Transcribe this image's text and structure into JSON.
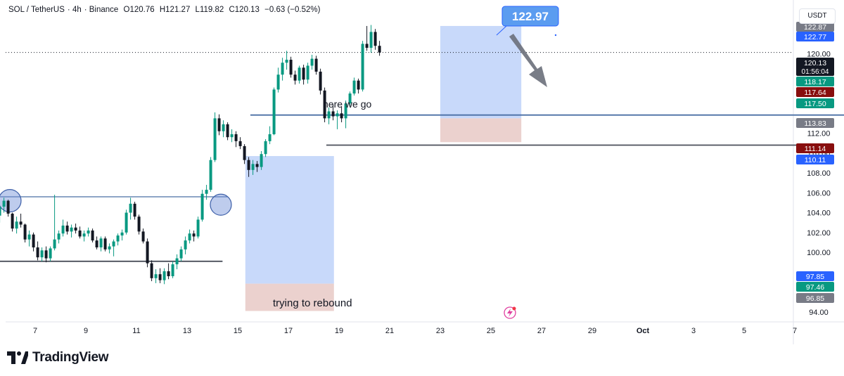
{
  "header": {
    "symbol": "SOL / TetherUS",
    "interval": "4h",
    "exchange": "Binance",
    "open": "O120.76",
    "high": "H121.27",
    "low": "L119.82",
    "close": "C120.13",
    "change": "−0.63 (−0.52%)"
  },
  "axis": {
    "currency": "USDT",
    "countdown": "01:56:04"
  },
  "brand": {
    "name": "TradingView"
  },
  "annotations": {
    "here_we_go": "here we go",
    "rebound": "trying to rebound",
    "callout": "122.97"
  },
  "colors": {
    "up": "#089981",
    "down": "#131722",
    "long_zone": "#9bb9f5",
    "stop_zone": "#e8c9c6",
    "blue_line": "#4a6fa5",
    "gray_line": "#787b86",
    "callout": "#2962ff"
  },
  "chart_data": {
    "type": "candlestick",
    "y_range": [
      93,
      124
    ],
    "y_ticks": [
      "94.00",
      "100.00",
      "102.00",
      "104.00",
      "106.00",
      "108.00",
      "110.00",
      "112.00",
      "120.00",
      "122.00"
    ],
    "x_ticks": [
      "7",
      "9",
      "11",
      "13",
      "15",
      "17",
      "19",
      "21",
      "23",
      "25",
      "27",
      "29",
      "Oct",
      "3",
      "5",
      "7"
    ],
    "price_labels": [
      {
        "value": "122.87",
        "color": "#787b86"
      },
      {
        "value": "122.77",
        "color": "#2962ff"
      },
      {
        "value": "120.13",
        "color": "#131722"
      },
      {
        "value": "118.17",
        "color": "#089981"
      },
      {
        "value": "117.64",
        "color": "#880e0e"
      },
      {
        "value": "117.50",
        "color": "#089981"
      },
      {
        "value": "113.83",
        "color": "#787b86"
      },
      {
        "value": "111.14",
        "color": "#880e0e"
      },
      {
        "value": "110.11",
        "color": "#2962ff"
      },
      {
        "value": "97.85",
        "color": "#2962ff"
      },
      {
        "value": "97.46",
        "color": "#089981"
      },
      {
        "value": "96.85",
        "color": "#787b86"
      }
    ],
    "current_price": 120.13,
    "horizontal_levels": [
      {
        "price": 113.83,
        "from_day": 15.5,
        "to_day": 44
      },
      {
        "price": 110.8,
        "from_day": 18.5,
        "to_day": 37.5
      },
      {
        "price": 105.6,
        "from_day": 4,
        "to_day": 14.6
      },
      {
        "price": 99.1,
        "from_day": 4,
        "to_day": 14.4
      }
    ],
    "position_tools": [
      {
        "from_day": 15.3,
        "to_day": 18.8,
        "entry": 96.85,
        "target": 109.7,
        "stop": 94.1
      },
      {
        "from_day": 23.0,
        "to_day": 26.2,
        "entry": 113.5,
        "target": 122.8,
        "stop": 111.1
      }
    ],
    "candles": [
      [
        106.1,
        106.4,
        104.0,
        105.2
      ],
      [
        105.2,
        106.9,
        104.6,
        106.2
      ],
      [
        106.2,
        106.5,
        104.3,
        104.7
      ],
      [
        104.7,
        105.3,
        103.2,
        103.9
      ],
      [
        103.9,
        104.2,
        102.8,
        103.6
      ],
      [
        103.6,
        105.1,
        103.2,
        104.8
      ],
      [
        104.8,
        105.0,
        103.0,
        103.3
      ],
      [
        103.3,
        104.1,
        102.8,
        103.9
      ],
      [
        103.9,
        104.0,
        102.6,
        102.9
      ],
      [
        102.9,
        103.8,
        102.6,
        103.4
      ],
      [
        103.4,
        104.7,
        103.1,
        104.3
      ],
      [
        104.3,
        104.9,
        103.4,
        103.7
      ],
      [
        103.7,
        104.7,
        103.0,
        104.6
      ],
      [
        104.6,
        105.5,
        104.0,
        105.2
      ],
      [
        105.2,
        105.3,
        103.6,
        103.9
      ],
      [
        103.9,
        104.0,
        102.1,
        102.4
      ],
      [
        102.4,
        103.6,
        101.9,
        103.1
      ],
      [
        103.1,
        103.9,
        102.5,
        102.8
      ],
      [
        102.8,
        102.9,
        101.0,
        101.3
      ],
      [
        101.3,
        102.2,
        100.6,
        101.8
      ],
      [
        101.8,
        102.0,
        100.1,
        100.5
      ],
      [
        100.5,
        101.1,
        99.2,
        99.5
      ],
      [
        99.5,
        100.5,
        99.1,
        100.2
      ],
      [
        100.2,
        100.6,
        99.0,
        99.4
      ],
      [
        99.4,
        100.6,
        99.1,
        100.4
      ],
      [
        100.4,
        105.8,
        100.2,
        101.3
      ],
      [
        101.3,
        102.2,
        100.9,
        101.9
      ],
      [
        101.9,
        103.3,
        101.6,
        102.7
      ],
      [
        102.7,
        103.1,
        101.8,
        102.1
      ],
      [
        102.1,
        102.8,
        101.5,
        102.5
      ],
      [
        102.5,
        102.9,
        101.9,
        102.2
      ],
      [
        102.2,
        102.6,
        101.4,
        101.6
      ],
      [
        101.6,
        102.2,
        101.1,
        101.9
      ],
      [
        101.9,
        102.5,
        101.6,
        102.2
      ],
      [
        102.2,
        102.4,
        101.0,
        101.2
      ],
      [
        101.2,
        101.6,
        100.3,
        100.5
      ],
      [
        100.5,
        101.6,
        100.1,
        101.4
      ],
      [
        101.4,
        101.6,
        100.1,
        100.3
      ],
      [
        100.3,
        100.9,
        99.9,
        100.6
      ],
      [
        100.6,
        101.3,
        99.6,
        101.1
      ],
      [
        101.1,
        101.9,
        100.7,
        101.7
      ],
      [
        101.7,
        102.3,
        101.2,
        102.0
      ],
      [
        102.0,
        104.3,
        101.8,
        104.0
      ],
      [
        104.0,
        105.5,
        103.3,
        104.9
      ],
      [
        104.9,
        105.1,
        103.3,
        103.6
      ],
      [
        103.6,
        103.8,
        101.8,
        102.1
      ],
      [
        102.1,
        102.4,
        100.9,
        101.1
      ],
      [
        101.1,
        101.4,
        98.5,
        98.9
      ],
      [
        98.9,
        99.2,
        97.1,
        97.4
      ],
      [
        97.4,
        98.3,
        96.9,
        97.8
      ],
      [
        97.8,
        98.4,
        96.9,
        97.2
      ],
      [
        97.2,
        98.4,
        96.8,
        98.1
      ],
      [
        98.1,
        98.9,
        97.3,
        97.6
      ],
      [
        97.6,
        99.1,
        97.4,
        98.8
      ],
      [
        98.8,
        99.8,
        98.3,
        99.4
      ],
      [
        99.4,
        100.6,
        99.1,
        100.3
      ],
      [
        100.3,
        101.6,
        99.8,
        101.2
      ],
      [
        101.2,
        102.3,
        100.9,
        101.9
      ],
      [
        101.9,
        102.2,
        101.1,
        101.6
      ],
      [
        101.6,
        103.6,
        101.4,
        103.3
      ],
      [
        103.3,
        106.3,
        103.1,
        105.9
      ],
      [
        105.9,
        106.8,
        105.3,
        106.3
      ],
      [
        106.3,
        109.6,
        106.1,
        109.3
      ],
      [
        109.3,
        114.1,
        109.1,
        113.5
      ],
      [
        113.5,
        113.9,
        111.8,
        112.2
      ],
      [
        112.2,
        113.3,
        111.6,
        112.9
      ],
      [
        112.9,
        113.1,
        111.3,
        111.6
      ],
      [
        111.6,
        112.4,
        111.1,
        111.9
      ],
      [
        111.9,
        112.2,
        110.6,
        111.2
      ],
      [
        111.2,
        111.6,
        110.4,
        110.7
      ],
      [
        110.7,
        110.9,
        108.9,
        109.3
      ],
      [
        109.3,
        109.6,
        107.6,
        108.3
      ],
      [
        108.3,
        109.3,
        107.8,
        108.9
      ],
      [
        108.9,
        109.2,
        108.1,
        108.6
      ],
      [
        108.6,
        110.2,
        108.3,
        109.9
      ],
      [
        109.9,
        111.4,
        109.6,
        111.2
      ],
      [
        111.2,
        112.7,
        110.9,
        111.9
      ],
      [
        111.9,
        116.6,
        111.8,
        116.4
      ],
      [
        116.4,
        118.6,
        116.1,
        117.9
      ],
      [
        117.9,
        119.6,
        117.3,
        119.1
      ],
      [
        119.1,
        120.3,
        118.4,
        119.4
      ],
      [
        119.4,
        119.7,
        117.6,
        117.9
      ],
      [
        117.9,
        118.3,
        116.9,
        117.3
      ],
      [
        117.3,
        118.8,
        117.0,
        118.6
      ],
      [
        118.6,
        118.9,
        116.9,
        117.4
      ],
      [
        117.4,
        119.1,
        117.0,
        118.8
      ],
      [
        118.8,
        119.9,
        118.4,
        119.5
      ],
      [
        119.5,
        119.8,
        117.9,
        118.2
      ],
      [
        118.2,
        118.5,
        115.9,
        116.3
      ],
      [
        116.3,
        116.6,
        113.1,
        113.5
      ],
      [
        113.5,
        114.6,
        112.9,
        114.2
      ],
      [
        114.2,
        114.9,
        113.3,
        113.7
      ],
      [
        113.7,
        114.3,
        112.4,
        114.0
      ],
      [
        114.0,
        114.7,
        113.1,
        113.5
      ],
      [
        113.5,
        115.3,
        112.5,
        115.0
      ],
      [
        115.0,
        116.2,
        114.7,
        116.0
      ],
      [
        116.0,
        117.6,
        115.8,
        117.3
      ],
      [
        117.3,
        117.5,
        116.0,
        116.4
      ],
      [
        116.4,
        121.3,
        116.2,
        121.0
      ],
      [
        121.0,
        122.8,
        120.3,
        120.6
      ],
      [
        120.6,
        122.9,
        120.1,
        122.2
      ],
      [
        122.2,
        122.5,
        120.4,
        120.8
      ],
      [
        120.8,
        121.3,
        119.8,
        120.13
      ]
    ]
  }
}
